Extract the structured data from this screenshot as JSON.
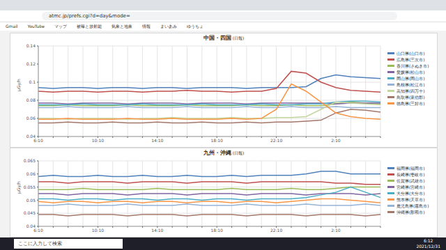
{
  "browser": {
    "url": "atmc.jp/prefs.cgi?d=day&mode=",
    "bookmarks": [
      "Gmail",
      "YouTube",
      "マップ",
      "被曝と放射能",
      "気象と地象",
      "情報",
      "まいあみ",
      "ゆうちょ"
    ]
  },
  "taskbar": {
    "search": "ここに入力して検索",
    "time": "6:12",
    "date": "2021/12/31"
  },
  "chart_data": [
    {
      "type": "line",
      "title": "中国・四国",
      "subtitle": "(日報)",
      "y_label": "μGy/h",
      "categories": [
        "6:10",
        null,
        null,
        null,
        "10:10",
        null,
        null,
        null,
        "14:10",
        null,
        null,
        null,
        "18:10",
        null,
        null,
        null,
        "22:10",
        null,
        null,
        null,
        "2:10",
        null,
        null,
        null
      ],
      "ylim": [
        0.04,
        0.14
      ],
      "yticks": [
        0.04,
        0.06,
        0.08,
        0.1,
        0.12,
        0.14
      ],
      "grid": true,
      "legend": "right",
      "series": [
        {
          "name": "山口県(山口市)",
          "color": "#4f81bd",
          "values": [
            0.094,
            0.093,
            0.094,
            0.094,
            0.093,
            0.094,
            0.094,
            0.093,
            0.094,
            0.094,
            0.093,
            0.094,
            0.094,
            0.094,
            0.093,
            0.094,
            0.094,
            0.094,
            0.095,
            0.104,
            0.108,
            0.106,
            0.105,
            0.104
          ]
        },
        {
          "name": "広島県(三次市)",
          "color": "#c0504d",
          "values": [
            0.09,
            0.089,
            0.09,
            0.09,
            0.089,
            0.09,
            0.09,
            0.089,
            0.09,
            0.09,
            0.091,
            0.09,
            0.09,
            0.089,
            0.09,
            0.09,
            0.093,
            0.112,
            0.11,
            0.1,
            0.094,
            0.091,
            0.09,
            0.089
          ]
        },
        {
          "name": "香川県(さぬき市)",
          "color": "#9bbb59",
          "values": [
            0.074,
            0.074,
            0.075,
            0.074,
            0.074,
            0.074,
            0.075,
            0.074,
            0.074,
            0.074,
            0.075,
            0.074,
            0.074,
            0.074,
            0.075,
            0.074,
            0.074,
            0.075,
            0.074,
            0.074,
            0.076,
            0.078,
            0.077,
            0.076
          ]
        },
        {
          "name": "愛媛県(松山市)",
          "color": "#8064a2",
          "values": [
            0.077,
            0.077,
            0.076,
            0.077,
            0.077,
            0.077,
            0.076,
            0.077,
            0.077,
            0.077,
            0.076,
            0.077,
            0.077,
            0.077,
            0.076,
            0.077,
            0.077,
            0.077,
            0.077,
            0.077,
            0.076,
            0.077,
            0.077,
            0.077
          ]
        },
        {
          "name": "岡山県(岡山市)",
          "color": "#4bacc6",
          "values": [
            0.075,
            0.075,
            0.075,
            0.076,
            0.075,
            0.075,
            0.075,
            0.076,
            0.075,
            0.075,
            0.075,
            0.076,
            0.075,
            0.075,
            0.075,
            0.076,
            0.075,
            0.075,
            0.076,
            0.076,
            0.078,
            0.079,
            0.079,
            0.078
          ]
        },
        {
          "name": "島根県(松江市)",
          "color": "#95b3d7",
          "values": [
            0.072,
            0.072,
            0.073,
            0.072,
            0.072,
            0.072,
            0.073,
            0.072,
            0.072,
            0.072,
            0.073,
            0.072,
            0.072,
            0.072,
            0.073,
            0.072,
            0.072,
            0.073,
            0.072,
            0.072,
            0.073,
            0.072,
            0.072,
            0.072
          ]
        },
        {
          "name": "高知県(四万十)",
          "color": "#c3d69b",
          "values": [
            0.06,
            0.06,
            0.059,
            0.06,
            0.06,
            0.06,
            0.059,
            0.06,
            0.06,
            0.061,
            0.06,
            0.06,
            0.06,
            0.061,
            0.06,
            0.06,
            0.061,
            0.061,
            0.062,
            0.07,
            0.078,
            0.077,
            0.076,
            0.075
          ]
        },
        {
          "name": "鳥取県(東伯郡)",
          "color": "#a5766a",
          "values": [
            0.055,
            0.055,
            0.056,
            0.055,
            0.055,
            0.056,
            0.055,
            0.055,
            0.056,
            0.055,
            0.055,
            0.056,
            0.055,
            0.055,
            0.056,
            0.055,
            0.056,
            0.056,
            0.057,
            0.058,
            0.066,
            0.07,
            0.069,
            0.067
          ]
        },
        {
          "name": "徳島県(三好市)",
          "color": "#f79646",
          "values": [
            0.059,
            0.059,
            0.06,
            0.059,
            0.059,
            0.059,
            0.06,
            0.059,
            0.059,
            0.06,
            0.059,
            0.059,
            0.059,
            0.06,
            0.059,
            0.06,
            0.07,
            0.098,
            0.09,
            0.078,
            0.066,
            0.062,
            0.06,
            0.059
          ]
        }
      ]
    },
    {
      "type": "line",
      "title": "九州・沖縄",
      "subtitle": "(日報)",
      "y_label": "μGy/h",
      "categories": [
        "6:10",
        null,
        null,
        null,
        "10:10",
        null,
        null,
        null,
        "14:10",
        null,
        null,
        null,
        "18:10",
        null,
        null,
        null,
        "22:10",
        null,
        null,
        null,
        "2:10",
        null,
        null,
        null
      ],
      "ylim": [
        0.04,
        0.065
      ],
      "yticks": [
        0.04,
        0.045,
        0.05,
        0.055,
        0.06,
        0.065
      ],
      "grid": true,
      "legend": "right",
      "series": [
        {
          "name": "福岡県(福岡市)",
          "color": "#4f81bd",
          "values": [
            0.059,
            0.0595,
            0.059,
            0.059,
            0.0595,
            0.059,
            0.059,
            0.0595,
            0.059,
            0.059,
            0.0595,
            0.059,
            0.059,
            0.0595,
            0.059,
            0.0595,
            0.0595,
            0.0595,
            0.06,
            0.061,
            0.061,
            0.06,
            0.06,
            0.06
          ]
        },
        {
          "name": "長崎県(壱岐市)",
          "color": "#c0504d",
          "values": [
            0.057,
            0.057,
            0.0565,
            0.057,
            0.057,
            0.057,
            0.0565,
            0.057,
            0.057,
            0.057,
            0.0565,
            0.057,
            0.057,
            0.057,
            0.0565,
            0.057,
            0.057,
            0.057,
            0.057,
            0.057,
            0.0565,
            0.0565,
            0.056,
            0.056
          ]
        },
        {
          "name": "佐賀県(武雄市)",
          "color": "#9bbb59",
          "values": [
            0.054,
            0.054,
            0.054,
            0.0545,
            0.054,
            0.054,
            0.054,
            0.054,
            0.0545,
            0.054,
            0.054,
            0.054,
            0.054,
            0.0545,
            0.054,
            0.054,
            0.054,
            0.0545,
            0.054,
            0.054,
            0.0545,
            0.055,
            0.055,
            0.055
          ]
        },
        {
          "name": "宮崎県(宮崎市)",
          "color": "#8064a2",
          "values": [
            0.0525,
            0.0525,
            0.052,
            0.0525,
            0.0525,
            0.0525,
            0.052,
            0.0525,
            0.0525,
            0.0525,
            0.052,
            0.0525,
            0.0525,
            0.0525,
            0.052,
            0.0525,
            0.0525,
            0.0525,
            0.052,
            0.0525,
            0.0525,
            0.0525,
            0.052,
            0.0525
          ]
        },
        {
          "name": "大分県(大分市)",
          "color": "#4bacc6",
          "values": [
            0.0505,
            0.0505,
            0.05,
            0.0505,
            0.0505,
            0.05,
            0.0505,
            0.0505,
            0.05,
            0.0505,
            0.0505,
            0.05,
            0.0505,
            0.0505,
            0.05,
            0.0505,
            0.0505,
            0.0505,
            0.051,
            0.052,
            0.053,
            0.055,
            0.053,
            0.051
          ]
        },
        {
          "name": "熊本県(天草市)",
          "color": "#f79646",
          "values": [
            0.0495,
            0.049,
            0.0495,
            0.0495,
            0.049,
            0.0495,
            0.0495,
            0.049,
            0.0495,
            0.0495,
            0.049,
            0.0495,
            0.0495,
            0.049,
            0.0495,
            0.0495,
            0.049,
            0.0495,
            0.05,
            0.0505,
            0.0505,
            0.05,
            0.0495,
            0.049
          ]
        },
        {
          "name": "鹿児島県(霧島市)",
          "color": "#95b3d7",
          "values": [
            0.048,
            0.048,
            0.0485,
            0.048,
            0.048,
            0.048,
            0.0485,
            0.048,
            0.048,
            0.048,
            0.0485,
            0.048,
            0.048,
            0.048,
            0.0485,
            0.048,
            0.048,
            0.048,
            0.0485,
            0.048,
            0.048,
            0.048,
            0.0485,
            0.048
          ]
        },
        {
          "name": "沖縄県(那覇市)",
          "color": "#a5766a",
          "values": [
            0.0445,
            0.0445,
            0.044,
            0.0445,
            0.0445,
            0.0445,
            0.044,
            0.0445,
            0.0445,
            0.0445,
            0.044,
            0.0445,
            0.0445,
            0.0445,
            0.044,
            0.0445,
            0.0445,
            0.0445,
            0.044,
            0.0445,
            0.0445,
            0.0445,
            0.044,
            0.0445
          ]
        }
      ]
    }
  ]
}
